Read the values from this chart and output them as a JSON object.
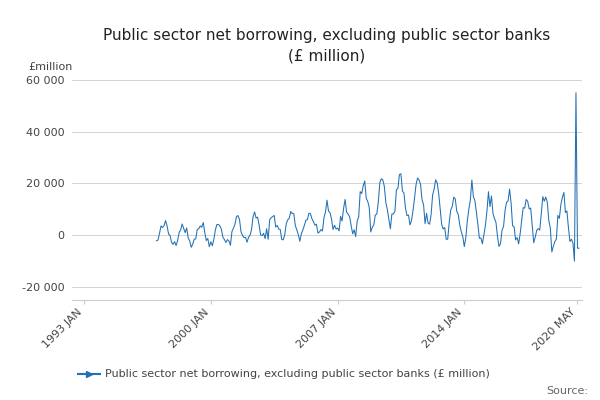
{
  "title_line1": "Public sector net borrowing, excluding public sector banks",
  "title_line2": "(£ million)",
  "ylabel": "£million",
  "legend_label": "Public sector net borrowing, excluding public sector banks (£ million)",
  "source_text": "Source:",
  "line_color": "#2171b5",
  "background_color": "#ffffff",
  "grid_color": "#cccccc",
  "text_color": "#444444",
  "yticks": [
    -20000,
    0,
    20000,
    40000,
    60000
  ],
  "ytick_labels": [
    "-20 000",
    "0",
    "20 000",
    "40 000",
    "60 000"
  ],
  "ylim": [
    -25000,
    63000
  ],
  "xtick_labels": [
    "1993 JAN",
    "2000 JAN",
    "2007 JAN",
    "2014 JAN",
    "2020 MAY"
  ],
  "xtick_positions": [
    0,
    84,
    168,
    252,
    327
  ],
  "data_start_index": 48,
  "n_total": 329,
  "figsize": [
    6.0,
    4.0
  ],
  "dpi": 100
}
